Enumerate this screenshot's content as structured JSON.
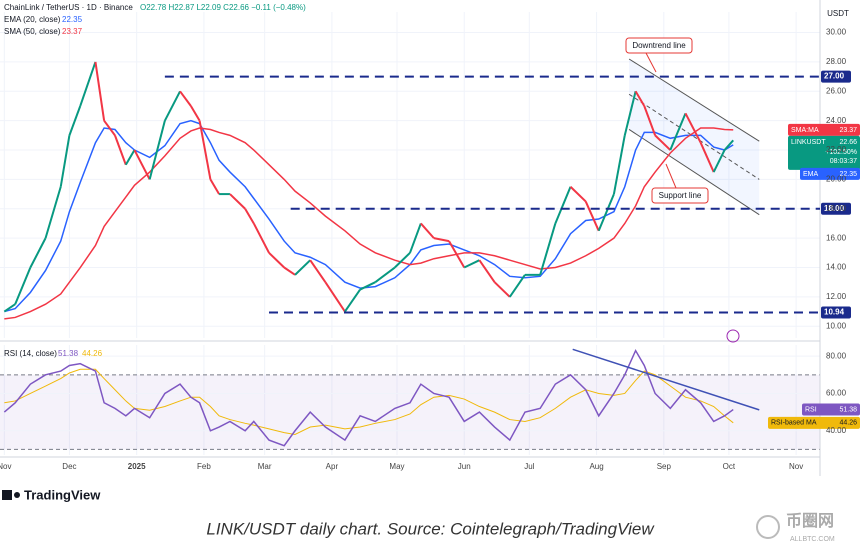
{
  "chart_data": {
    "type": "line",
    "header": {
      "symbol": "ChainLink / TetherUS · 1D · Binance",
      "ohlc": "O22.78 H22.87 L22.09 C22.66 −0.11 (−0.48%)",
      "currency": "USDT"
    },
    "xlim": [
      -2,
      376
    ],
    "xticks": [
      {
        "value": 0,
        "label": "Nov"
      },
      {
        "value": 30,
        "label": "Dec"
      },
      {
        "value": 61,
        "label": "2025"
      },
      {
        "value": 92,
        "label": "Feb"
      },
      {
        "value": 120,
        "label": "Mar"
      },
      {
        "value": 151,
        "label": "Apr"
      },
      {
        "value": 181,
        "label": "May"
      },
      {
        "value": 212,
        "label": "Jun"
      },
      {
        "value": 242,
        "label": "Jul"
      },
      {
        "value": 273,
        "label": "Aug"
      },
      {
        "value": 304,
        "label": "Sep"
      },
      {
        "value": 334,
        "label": "Oct"
      },
      {
        "value": 365,
        "label": "Nov"
      }
    ],
    "ylim": [
      9.2,
      31.4
    ],
    "yticks": [
      {
        "value": 30,
        "label": "30.00"
      },
      {
        "value": 28,
        "label": "28.00"
      },
      {
        "value": 26,
        "label": "26.00"
      },
      {
        "value": 24,
        "label": "24.00"
      },
      {
        "value": 22,
        "label": "22.00"
      },
      {
        "value": 20,
        "label": "20.00"
      },
      {
        "value": 18,
        "label": "18.00"
      },
      {
        "value": 16,
        "label": "16.00"
      },
      {
        "value": 14,
        "label": "14.00"
      },
      {
        "value": 12,
        "label": "12.00"
      },
      {
        "value": 10,
        "label": "10.00"
      }
    ],
    "grid": true,
    "x": [
      0,
      5,
      12,
      19,
      26,
      30,
      35,
      42,
      46,
      51,
      56,
      60,
      67,
      74,
      81,
      86,
      90,
      95,
      99,
      104,
      111,
      115,
      122,
      129,
      134,
      141,
      148,
      157,
      164,
      171,
      180,
      187,
      192,
      198,
      205,
      212,
      219,
      226,
      233,
      240,
      247,
      254,
      261,
      268,
      274,
      281,
      286,
      291,
      295,
      300,
      307,
      314,
      321,
      327,
      332,
      336
    ],
    "price": {
      "name": "LINKUSDT",
      "up_color": "#089981",
      "down_color": "#f23645",
      "values": [
        11,
        11.5,
        14,
        16,
        19.5,
        23,
        25,
        28,
        24,
        23,
        21,
        22,
        20,
        24,
        26,
        25,
        24,
        20,
        19,
        19,
        18,
        17,
        15,
        14,
        13.5,
        14.5,
        13,
        11,
        12.5,
        13,
        14,
        15,
        17,
        16,
        15.8,
        14,
        14.5,
        13,
        12,
        13.5,
        13.5,
        17,
        19.5,
        18.5,
        16.5,
        19,
        23,
        26,
        25,
        23,
        22,
        24.5,
        22.5,
        20.5,
        22,
        22.66
      ]
    },
    "series": [
      {
        "name": "EMA (20, close)",
        "tag": "EMA",
        "color": "#2962ff",
        "values": [
          11,
          11.2,
          12.3,
          13.8,
          15.8,
          17.8,
          19.8,
          22.5,
          23.5,
          23.4,
          22.5,
          22,
          21.5,
          22.3,
          23.8,
          24,
          23.8,
          22.5,
          21.3,
          20.5,
          19.5,
          18.7,
          17.3,
          15.8,
          15,
          14.7,
          14.2,
          13,
          12.6,
          12.7,
          13.3,
          14.2,
          15.2,
          15.5,
          15.6,
          15.2,
          14.8,
          14.2,
          13.4,
          13.3,
          13.4,
          14.6,
          16.3,
          17.2,
          17.3,
          17.8,
          19.5,
          22,
          23.2,
          23.2,
          22.8,
          23,
          23,
          22.2,
          22,
          22.35
        ]
      },
      {
        "name": "SMA (50, close)",
        "tag": "SMA:MA",
        "color": "#f23645",
        "values": [
          10.5,
          10.6,
          11,
          11.5,
          12.2,
          13,
          14,
          15.5,
          16.8,
          17.8,
          18.8,
          19.6,
          20.5,
          21.6,
          22.8,
          23.3,
          23.5,
          23.4,
          23.2,
          23,
          22.5,
          22,
          21,
          20,
          19.2,
          18.4,
          17.5,
          16.5,
          15.6,
          15,
          14.5,
          14.2,
          14.3,
          14.6,
          14.8,
          15,
          15,
          14.8,
          14.5,
          14.2,
          13.9,
          14,
          14.3,
          14.8,
          15.3,
          16,
          17,
          18.2,
          19.5,
          20.5,
          21.8,
          22.8,
          23.5,
          23.5,
          23.4,
          23.37
        ]
      }
    ],
    "price_tag_extra": [
      "+102.50%",
      "08:03:37"
    ],
    "levels": [
      {
        "value": 27,
        "label": "27.00",
        "from": 74
      },
      {
        "value": 18,
        "label": "18.00",
        "from": 132
      },
      {
        "value": 10.94,
        "label": "10.94",
        "from": 122
      }
    ],
    "level_color": "#1a2a8c",
    "trendlines": [
      {
        "x": [
          288,
          348
        ],
        "y": [
          28.2,
          22.6
        ],
        "dashed": false
      },
      {
        "x": [
          288,
          348
        ],
        "y": [
          25.8,
          20.0
        ],
        "dashed": true
      },
      {
        "x": [
          288,
          348
        ],
        "y": [
          23.4,
          17.6
        ],
        "dashed": false
      }
    ],
    "annotations": [
      {
        "text": "Downtrend line"
      },
      {
        "text": "Support line"
      }
    ],
    "rsi": {
      "name": "RSI (14, close)",
      "tag": "RSI",
      "color": "#7e57c2",
      "ma_tag": "RSI-based MA",
      "ma_color": "#f0b90b",
      "ylim": [
        27,
        86
      ],
      "yticks": [
        {
          "value": 80,
          "label": "80.00"
        },
        {
          "value": 60,
          "label": "60.00"
        },
        {
          "value": 40,
          "label": "40.00"
        }
      ],
      "band": [
        70,
        30
      ],
      "values": [
        50,
        55,
        65,
        70,
        72,
        75,
        76,
        72,
        55,
        52,
        48,
        52,
        47,
        60,
        65,
        58,
        55,
        40,
        42,
        45,
        40,
        45,
        35,
        32,
        40,
        50,
        42,
        35,
        48,
        45,
        52,
        55,
        65,
        60,
        58,
        45,
        50,
        42,
        35,
        50,
        52,
        65,
        70,
        62,
        48,
        60,
        70,
        83,
        75,
        60,
        52,
        62,
        55,
        45,
        48,
        51.38
      ],
      "ma_values": [
        55,
        56,
        60,
        64,
        68,
        71,
        73,
        73,
        68,
        62,
        56,
        52,
        51,
        53,
        56,
        58,
        58,
        53,
        48,
        46,
        44,
        43,
        41,
        39,
        38,
        42,
        43,
        41,
        42,
        44,
        46,
        49,
        54,
        58,
        59,
        57,
        53,
        50,
        46,
        45,
        47,
        52,
        58,
        62,
        60,
        59,
        60,
        67,
        72,
        70,
        64,
        58,
        56,
        53,
        48,
        44.26
      ],
      "trendline": {
        "x": [
          262,
          348
        ],
        "y": [
          83.7,
          51.2
        ]
      }
    },
    "branding": "TradingView",
    "caption": "LINK/USDT daily chart. Source: Cointelegraph/TradingView",
    "watermark": {
      "name": "币圈网",
      "site": "ALLBTC.COM"
    }
  }
}
